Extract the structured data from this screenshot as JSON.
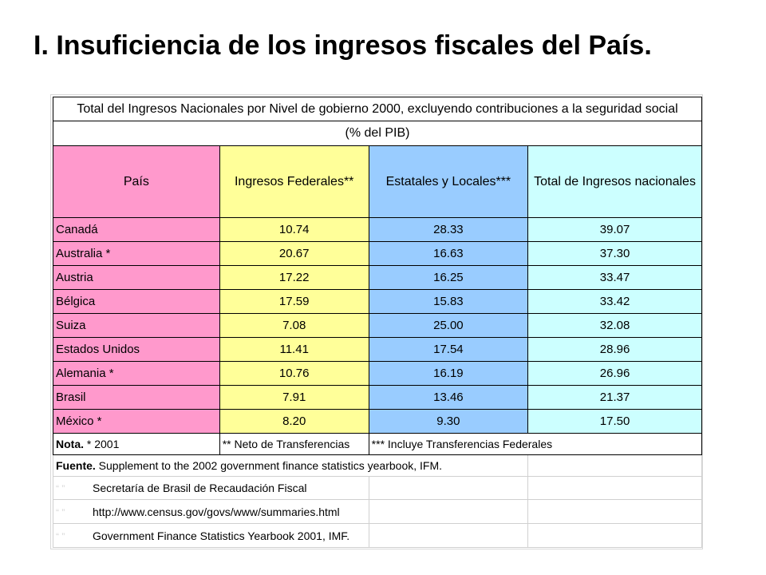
{
  "slide": {
    "title": "I. Insuficiencia de los ingresos fiscales del País."
  },
  "table": {
    "caption": "Total del Ingresos  Nacionales por Nivel de gobierno 2000, excluyendo contribuciones a la seguridad social",
    "subcaption": "(% del PIB)",
    "headers": [
      "País",
      "Ingresos Federales**",
      "Estatales y Locales***",
      "Total de Ingresos nacionales"
    ],
    "header_colors": [
      "#ff99cc",
      "#ffff99",
      "#99ccff",
      "#ccffff"
    ],
    "rows": [
      {
        "country": "Canadá",
        "federal": "10.74",
        "state_local": "28.33",
        "total": "39.07"
      },
      {
        "country": "Australia *",
        "federal": "20.67",
        "state_local": "16.63",
        "total": "37.30"
      },
      {
        "country": "Austria",
        "federal": "17.22",
        "state_local": "16.25",
        "total": "33.47"
      },
      {
        "country": "Bélgica",
        "federal": "17.59",
        "state_local": "15.83",
        "total": "33.42"
      },
      {
        "country": "Suiza",
        "federal": "7.08",
        "state_local": "25.00",
        "total": "32.08"
      },
      {
        "country": "Estados Unidos",
        "federal": "11.41",
        "state_local": "17.54",
        "total": "28.96"
      },
      {
        "country": "Alemania  *",
        "federal": "10.76",
        "state_local": "16.19",
        "total": "26.96"
      },
      {
        "country": "Brasil",
        "federal": "7.91",
        "state_local": "13.46",
        "total": "21.37"
      },
      {
        "country": "México *",
        "federal": "8.20",
        "state_local": "9.30",
        "total": "17.50"
      }
    ],
    "notes": {
      "label": "Nota.",
      "note1": " * 2001",
      "note2": "** Neto de Transferencias",
      "note3": "*** Incluye Transferencias Federales"
    },
    "sources": {
      "label": "Fuente.",
      "items": [
        "Supplement to the 2002 government finance statistics yearbook, IFM.",
        "Secretaría de Brasil de Recaudación Fiscal",
        "http://www.census.gov/govs/www/summaries.html",
        "Government Finance Statistics Yearbook 2001, IMF."
      ]
    }
  }
}
